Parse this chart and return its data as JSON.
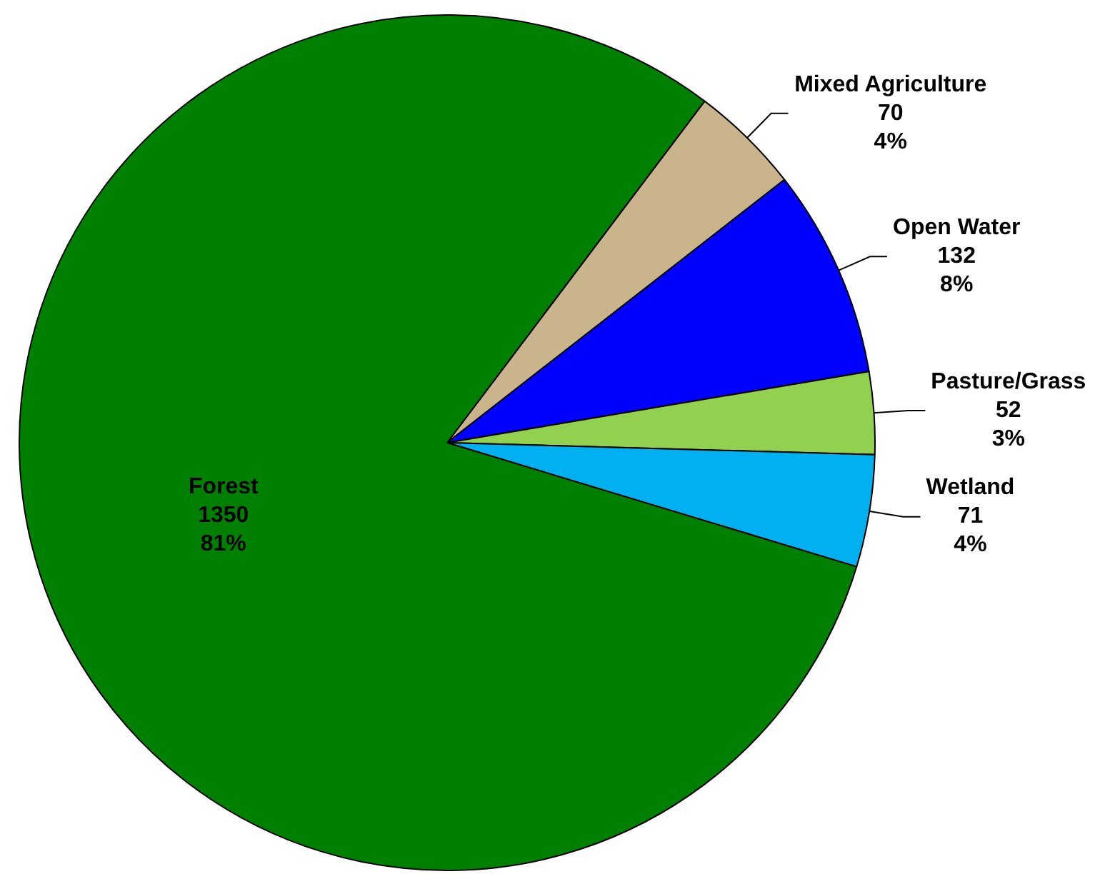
{
  "chart_data": {
    "type": "pie",
    "categories": [
      "Mixed Agriculture",
      "Open Water",
      "Pasture/Grass",
      "Wetland",
      "Forest"
    ],
    "values": [
      70,
      132,
      52,
      71,
      1350
    ],
    "colors": [
      "#c9b48c",
      "#0000ff",
      "#92d050",
      "#00b0f0",
      "#008000"
    ],
    "value_labels": [
      "70\n4%",
      "132\n8%",
      "52\n3%",
      "71\n4%",
      "1350\n81%"
    ],
    "legend": false
  }
}
